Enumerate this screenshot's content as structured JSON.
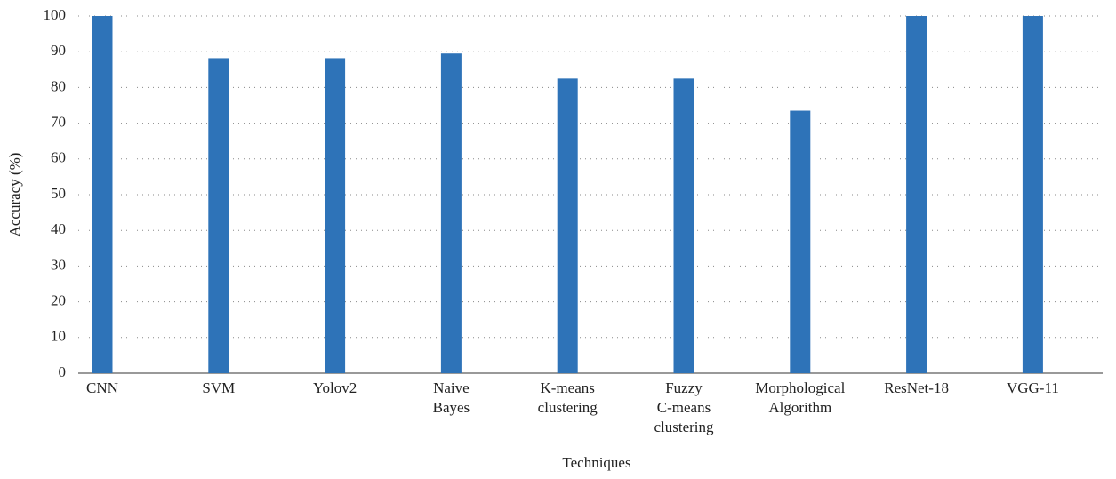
{
  "chart_data": {
    "type": "bar",
    "x_label": "Techniques",
    "y_label": "Accuracy (%)",
    "categories": [
      "CNN",
      "SVM",
      "Yolov2",
      "Naive Bayes",
      "K-means clustering",
      "Fuzzy C-means clustering",
      "Morphological Algorithm",
      "ResNet-18",
      "VGG-11"
    ],
    "values": [
      100,
      88.2,
      88.2,
      89.5,
      82.5,
      82.5,
      73.5,
      100,
      100
    ],
    "color": "#2e73b8",
    "ylim": [
      0,
      100
    ],
    "yticks": [
      0,
      10,
      20,
      30,
      40,
      50,
      60,
      70,
      80,
      90,
      100
    ],
    "grid": true
  }
}
